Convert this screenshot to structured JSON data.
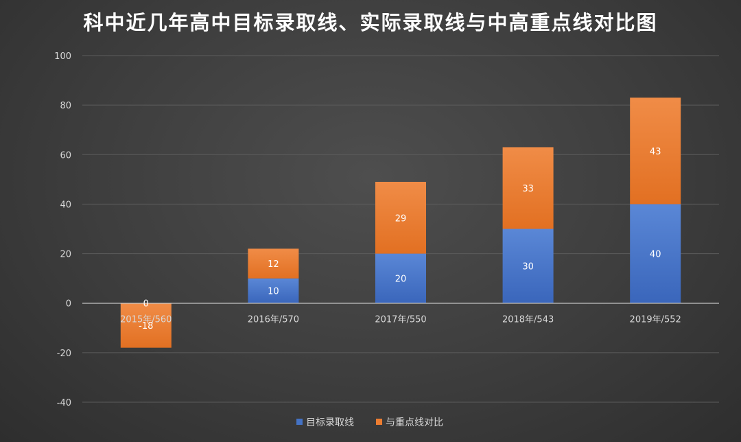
{
  "chart_data": {
    "type": "bar",
    "stacked": true,
    "title": "科中近几年高中目标录取线、实际录取线与中高重点线对比图",
    "categories": [
      "2015年/560",
      "2016年/570",
      "2017年/550",
      "2018年/543",
      "2019年/552"
    ],
    "series": [
      {
        "name": "目标录取线",
        "color": "#4472c4",
        "values": [
          0,
          10,
          20,
          30,
          40
        ],
        "labels": [
          "0",
          "10",
          "20",
          "30",
          "40"
        ]
      },
      {
        "name": "与重点线对比",
        "color": "#ed7d31",
        "values": [
          -18,
          12,
          29,
          33,
          43
        ],
        "labels": [
          "-18",
          "12",
          "29",
          "33",
          "43"
        ]
      }
    ],
    "ylim": [
      -40,
      100
    ],
    "yticks": [
      -40,
      -20,
      0,
      20,
      40,
      60,
      80,
      100
    ],
    "ytick_labels": [
      "-40",
      "-20",
      "0",
      "20",
      "40",
      "60",
      "80",
      "100"
    ],
    "grid": true,
    "legend_position": "bottom"
  }
}
